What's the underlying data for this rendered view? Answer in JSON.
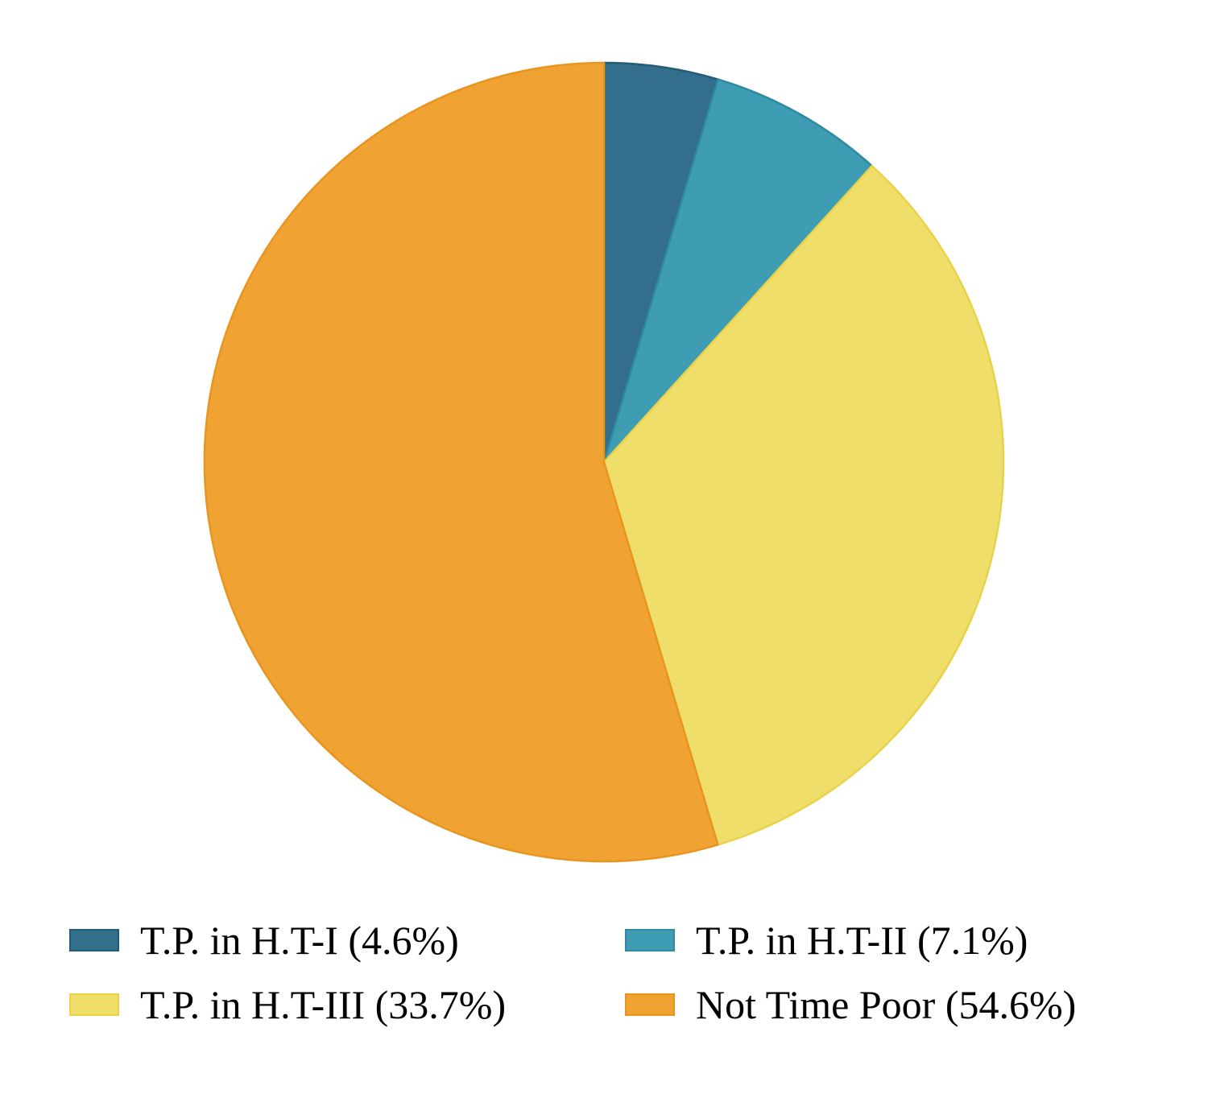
{
  "chart_data": {
    "type": "pie",
    "title": "",
    "start_angle": "12 o'clock",
    "direction": "clockwise",
    "slices": [
      {
        "label": "T.P. in H.T-I (4.6%)",
        "value": 4.6,
        "color": "#336e8c",
        "edge": "#245b78"
      },
      {
        "label": "T.P. in H.T-II (7.1%)",
        "value": 7.1,
        "color": "#3e9cb3",
        "edge": "#2e8aa3"
      },
      {
        "label": "T.P. in H.T-III (33.7%)",
        "value": 33.7,
        "color": "#efdf6a",
        "edge": "#e8d24a"
      },
      {
        "label": "Not Time Poor (54.6%)",
        "value": 54.6,
        "color": "#f0a233",
        "edge": "#e8951f"
      }
    ],
    "legend_position": "bottom",
    "legend_columns": 2
  }
}
